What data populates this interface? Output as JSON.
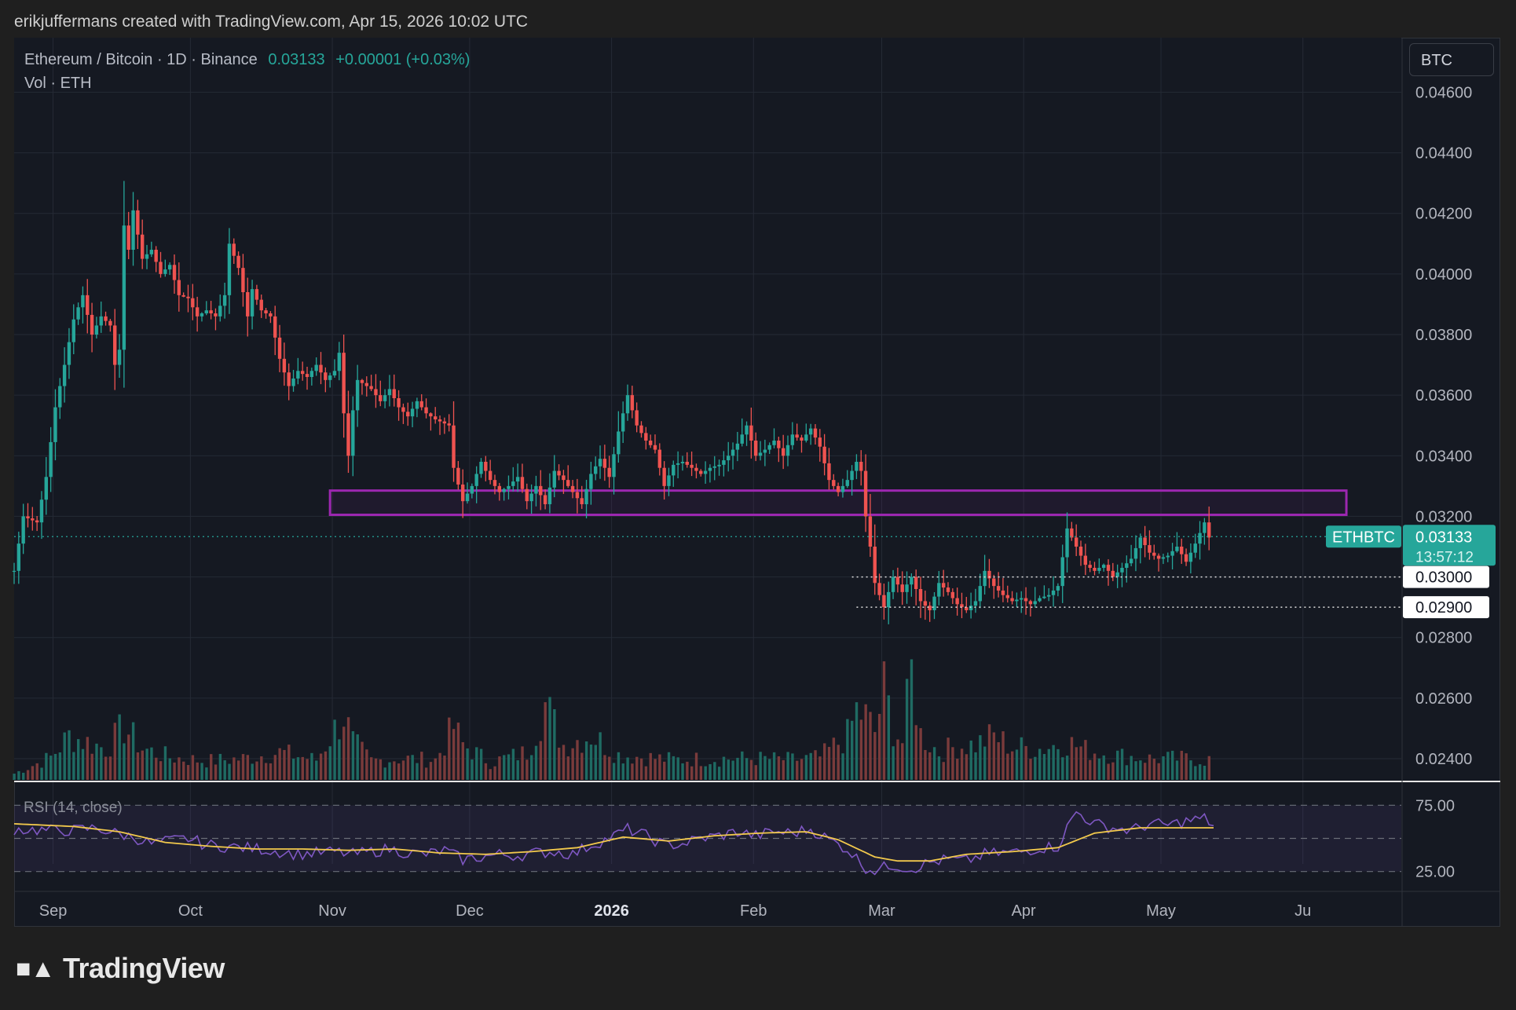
{
  "attribution": "erikjuffermans created with TradingView.com, Apr 15, 2026 10:02 UTC",
  "legend": {
    "symbol_line": "Ethereum / Bitcoin · 1D · Binance",
    "last": "0.03133",
    "change": "+0.00001 (+0.03%)",
    "volume_line": "Vol · ETH"
  },
  "currency_button": "BTC",
  "brand": "TradingView",
  "rsi_label": "RSI (14, close)",
  "price_tag": {
    "name": "ETHBTC",
    "price": "0.03133",
    "countdown": "13:57:12"
  },
  "level_tags": [
    "0.03000",
    "0.02900"
  ],
  "chart_data": {
    "type": "candlestick",
    "title": "Ethereum / Bitcoin · 1D · Binance",
    "y_axis_ticks": [
      "0.04600",
      "0.04400",
      "0.04200",
      "0.04000",
      "0.03800",
      "0.03600",
      "0.03400",
      "0.03200",
      "0.02800",
      "0.02600",
      "0.02400"
    ],
    "ylim": [
      0.0233,
      0.0478
    ],
    "x_axis_ticks": [
      "Sep",
      "Oct",
      "Nov",
      "Dec",
      "2026",
      "Feb",
      "Mar",
      "Apr",
      "May",
      "Ju"
    ],
    "rsi_ticks": [
      "75.00",
      "25.00"
    ],
    "xlim_days": [
      -8,
      295
    ],
    "zone": {
      "y_low": 0.03205,
      "y_high": 0.03285,
      "day_start": 61,
      "day_end": 283,
      "color": "#9c27b0"
    },
    "levels": [
      {
        "price": 0.03,
        "day_start": 175
      },
      {
        "price": 0.029,
        "day_start": 176
      }
    ],
    "last_price_line": 0.03133,
    "series": {
      "anchors": [
        [
          -8,
          0.0302
        ],
        [
          -6,
          0.032
        ],
        [
          -3,
          0.0318
        ],
        [
          -1,
          0.0333
        ],
        [
          1,
          0.0356
        ],
        [
          3,
          0.037
        ],
        [
          5,
          0.0385
        ],
        [
          7,
          0.0393
        ],
        [
          9,
          0.038
        ],
        [
          11,
          0.0386
        ],
        [
          13,
          0.0383
        ],
        [
          14,
          0.037
        ],
        [
          15,
          0.0375
        ],
        [
          16,
          0.0416
        ],
        [
          17,
          0.0408
        ],
        [
          18,
          0.0421
        ],
        [
          20,
          0.0405
        ],
        [
          22,
          0.0408
        ],
        [
          24,
          0.04
        ],
        [
          26,
          0.0403
        ],
        [
          28,
          0.0393
        ],
        [
          30,
          0.0392
        ],
        [
          32,
          0.0386
        ],
        [
          34,
          0.0388
        ],
        [
          36,
          0.0386
        ],
        [
          38,
          0.0393
        ],
        [
          39,
          0.041
        ],
        [
          41,
          0.0402
        ],
        [
          43,
          0.0386
        ],
        [
          44,
          0.0395
        ],
        [
          46,
          0.0388
        ],
        [
          48,
          0.0386
        ],
        [
          50,
          0.0372
        ],
        [
          52,
          0.0363
        ],
        [
          54,
          0.0368
        ],
        [
          56,
          0.0366
        ],
        [
          58,
          0.037
        ],
        [
          60,
          0.0365
        ],
        [
          62,
          0.0368
        ],
        [
          63,
          0.0374
        ],
        [
          64,
          0.0354
        ],
        [
          65,
          0.034
        ],
        [
          66,
          0.0355
        ],
        [
          67,
          0.0365
        ],
        [
          70,
          0.0362
        ],
        [
          72,
          0.0358
        ],
        [
          74,
          0.0362
        ],
        [
          76,
          0.0356
        ],
        [
          78,
          0.0353
        ],
        [
          80,
          0.0358
        ],
        [
          82,
          0.0354
        ],
        [
          84,
          0.0352
        ],
        [
          87,
          0.035
        ],
        [
          88,
          0.0336
        ],
        [
          90,
          0.0325
        ],
        [
          92,
          0.033
        ],
        [
          94,
          0.0338
        ],
        [
          96,
          0.0332
        ],
        [
          98,
          0.0328
        ],
        [
          100,
          0.033
        ],
        [
          102,
          0.0333
        ],
        [
          104,
          0.0325
        ],
        [
          106,
          0.033
        ],
        [
          108,
          0.0324
        ],
        [
          110,
          0.0335
        ],
        [
          112,
          0.0332
        ],
        [
          114,
          0.0328
        ],
        [
          116,
          0.0324
        ],
        [
          118,
          0.0334
        ],
        [
          120,
          0.0339
        ],
        [
          122,
          0.0333
        ],
        [
          124,
          0.0348
        ],
        [
          126,
          0.036
        ],
        [
          128,
          0.035
        ],
        [
          130,
          0.0345
        ],
        [
          132,
          0.0342
        ],
        [
          134,
          0.033
        ],
        [
          136,
          0.0337
        ],
        [
          138,
          0.0338
        ],
        [
          140,
          0.0336
        ],
        [
          142,
          0.0334
        ],
        [
          144,
          0.0336
        ],
        [
          146,
          0.0337
        ],
        [
          148,
          0.034
        ],
        [
          150,
          0.0344
        ],
        [
          152,
          0.035
        ],
        [
          154,
          0.034
        ],
        [
          156,
          0.0342
        ],
        [
          158,
          0.0345
        ],
        [
          160,
          0.034
        ],
        [
          162,
          0.0347
        ],
        [
          164,
          0.0345
        ],
        [
          166,
          0.0349
        ],
        [
          168,
          0.0343
        ],
        [
          170,
          0.0332
        ],
        [
          172,
          0.0328
        ],
        [
          174,
          0.0332
        ],
        [
          176,
          0.0338
        ],
        [
          177,
          0.0335
        ],
        [
          178,
          0.032
        ],
        [
          179,
          0.031
        ],
        [
          180,
          0.0298
        ],
        [
          182,
          0.029
        ],
        [
          184,
          0.03
        ],
        [
          186,
          0.0295
        ],
        [
          188,
          0.03
        ],
        [
          190,
          0.0292
        ],
        [
          192,
          0.0289
        ],
        [
          194,
          0.0298
        ],
        [
          196,
          0.0295
        ],
        [
          198,
          0.0291
        ],
        [
          200,
          0.0289
        ],
        [
          202,
          0.0292
        ],
        [
          204,
          0.0302
        ],
        [
          206,
          0.0297
        ],
        [
          208,
          0.0294
        ],
        [
          210,
          0.0292
        ],
        [
          212,
          0.0293
        ],
        [
          214,
          0.0291
        ],
        [
          216,
          0.0293
        ],
        [
          218,
          0.0294
        ],
        [
          220,
          0.0297
        ],
        [
          222,
          0.0316
        ],
        [
          224,
          0.031
        ],
        [
          226,
          0.0304
        ],
        [
          228,
          0.0302
        ],
        [
          230,
          0.0304
        ],
        [
          232,
          0.03
        ],
        [
          234,
          0.0303
        ],
        [
          236,
          0.0306
        ],
        [
          238,
          0.0313
        ],
        [
          240,
          0.0308
        ],
        [
          242,
          0.0306
        ],
        [
          244,
          0.0307
        ],
        [
          246,
          0.031
        ],
        [
          248,
          0.0305
        ],
        [
          250,
          0.0311
        ],
        [
          252,
          0.0318
        ],
        [
          253,
          0.0313
        ]
      ],
      "volume_anchors": [
        [
          -8,
          0.05
        ],
        [
          0,
          0.18
        ],
        [
          4,
          0.35
        ],
        [
          8,
          0.3
        ],
        [
          12,
          0.25
        ],
        [
          16,
          0.42
        ],
        [
          20,
          0.25
        ],
        [
          26,
          0.18
        ],
        [
          34,
          0.15
        ],
        [
          42,
          0.17
        ],
        [
          50,
          0.22
        ],
        [
          58,
          0.16
        ],
        [
          64,
          0.52
        ],
        [
          66,
          0.3
        ],
        [
          70,
          0.15
        ],
        [
          76,
          0.17
        ],
        [
          84,
          0.16
        ],
        [
          88,
          0.42
        ],
        [
          90,
          0.28
        ],
        [
          96,
          0.14
        ],
        [
          104,
          0.22
        ],
        [
          108,
          0.6
        ],
        [
          112,
          0.28
        ],
        [
          118,
          0.36
        ],
        [
          124,
          0.2
        ],
        [
          130,
          0.18
        ],
        [
          136,
          0.16
        ],
        [
          146,
          0.17
        ],
        [
          154,
          0.17
        ],
        [
          162,
          0.16
        ],
        [
          168,
          0.18
        ],
        [
          174,
          0.35
        ],
        [
          176,
          0.55
        ],
        [
          178,
          0.5
        ],
        [
          180,
          0.38
        ],
        [
          182,
          0.72
        ],
        [
          184,
          0.42
        ],
        [
          186,
          0.3
        ],
        [
          188,
          0.85
        ],
        [
          190,
          0.36
        ],
        [
          194,
          0.22
        ],
        [
          198,
          0.27
        ],
        [
          202,
          0.28
        ],
        [
          206,
          0.35
        ],
        [
          210,
          0.26
        ],
        [
          216,
          0.25
        ],
        [
          222,
          0.3
        ],
        [
          226,
          0.24
        ],
        [
          232,
          0.2
        ],
        [
          240,
          0.17
        ],
        [
          248,
          0.17
        ],
        [
          252,
          0.16
        ]
      ],
      "rsi_anchors": [
        [
          -8,
          57
        ],
        [
          0,
          56
        ],
        [
          5,
          56
        ],
        [
          10,
          58
        ],
        [
          14,
          54
        ],
        [
          18,
          51
        ],
        [
          22,
          46
        ],
        [
          26,
          48
        ],
        [
          30,
          50
        ],
        [
          34,
          45
        ],
        [
          38,
          44
        ],
        [
          42,
          43
        ],
        [
          46,
          42
        ],
        [
          50,
          40
        ],
        [
          54,
          38
        ],
        [
          58,
          39
        ],
        [
          62,
          40
        ],
        [
          66,
          38
        ],
        [
          70,
          40
        ],
        [
          74,
          42
        ],
        [
          78,
          39
        ],
        [
          82,
          38
        ],
        [
          86,
          41
        ],
        [
          90,
          34
        ],
        [
          94,
          36
        ],
        [
          98,
          38
        ],
        [
          102,
          37
        ],
        [
          106,
          39
        ],
        [
          110,
          40
        ],
        [
          114,
          38
        ],
        [
          118,
          45
        ],
        [
          122,
          50
        ],
        [
          126,
          57
        ],
        [
          130,
          52
        ],
        [
          134,
          45
        ],
        [
          138,
          46
        ],
        [
          142,
          50
        ],
        [
          146,
          52
        ],
        [
          150,
          55
        ],
        [
          154,
          52
        ],
        [
          158,
          55
        ],
        [
          162,
          54
        ],
        [
          166,
          57
        ],
        [
          170,
          49
        ],
        [
          174,
          42
        ],
        [
          178,
          28
        ],
        [
          180,
          26
        ],
        [
          184,
          30
        ],
        [
          188,
          27
        ],
        [
          192,
          32
        ],
        [
          196,
          34
        ],
        [
          200,
          33
        ],
        [
          204,
          38
        ],
        [
          208,
          39
        ],
        [
          212,
          40
        ],
        [
          216,
          43
        ],
        [
          220,
          44
        ],
        [
          222,
          58
        ],
        [
          224,
          70
        ],
        [
          228,
          61
        ],
        [
          232,
          58
        ],
        [
          236,
          56
        ],
        [
          240,
          61
        ],
        [
          244,
          60
        ],
        [
          248,
          63
        ],
        [
          252,
          65
        ],
        [
          254,
          60
        ]
      ],
      "rsi_ma_anchors": [
        [
          -8,
          61
        ],
        [
          5,
          59
        ],
        [
          15,
          55
        ],
        [
          25,
          47
        ],
        [
          35,
          44
        ],
        [
          45,
          42
        ],
        [
          55,
          42
        ],
        [
          65,
          41
        ],
        [
          75,
          42
        ],
        [
          85,
          39
        ],
        [
          95,
          38
        ],
        [
          105,
          40
        ],
        [
          115,
          43
        ],
        [
          125,
          51
        ],
        [
          135,
          48
        ],
        [
          145,
          52
        ],
        [
          155,
          54
        ],
        [
          165,
          55
        ],
        [
          172,
          49
        ],
        [
          180,
          36
        ],
        [
          185,
          33
        ],
        [
          192,
          33
        ],
        [
          200,
          38
        ],
        [
          210,
          40
        ],
        [
          220,
          43
        ],
        [
          228,
          54
        ],
        [
          238,
          58
        ],
        [
          246,
          58
        ],
        [
          254,
          58
        ]
      ]
    }
  }
}
